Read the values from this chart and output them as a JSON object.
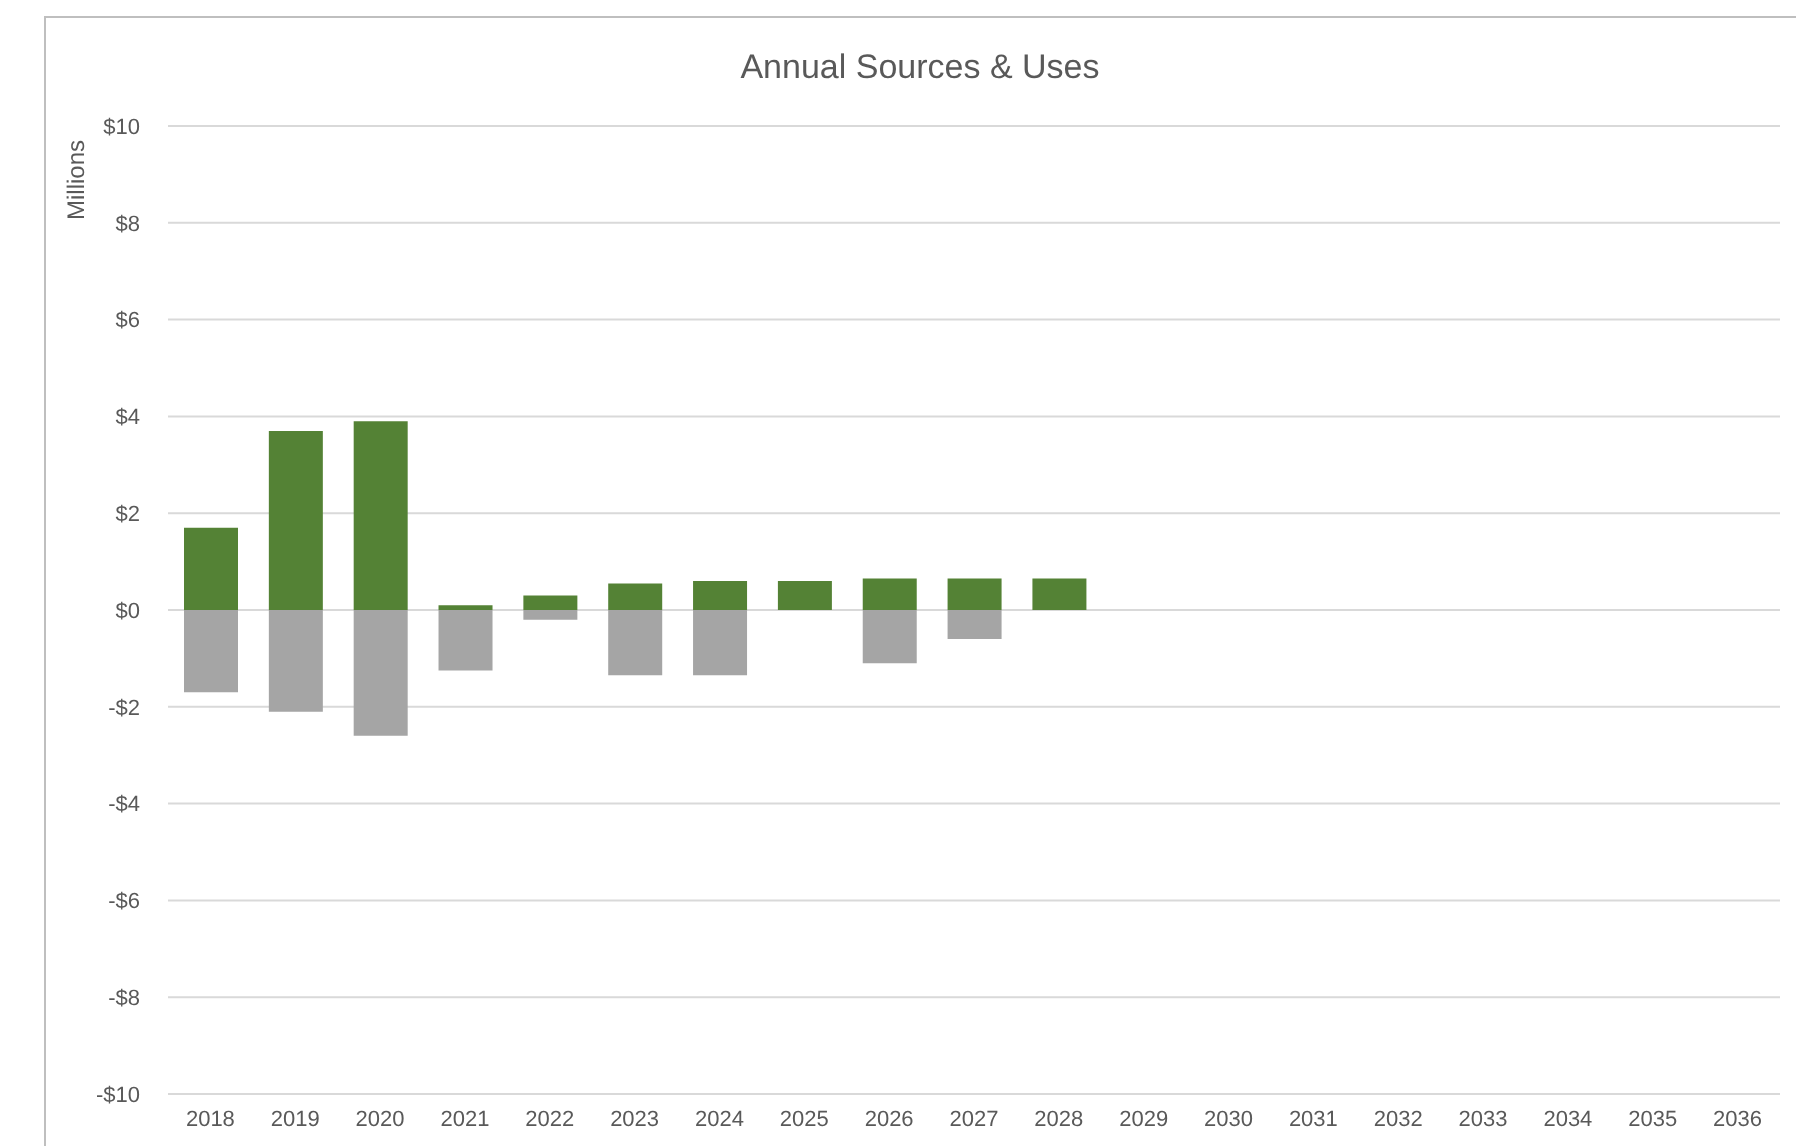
{
  "chart_data": {
    "type": "bar",
    "title": "Annual Sources & Uses",
    "ylabel": "Millions",
    "categories": [
      "2018",
      "2019",
      "2020",
      "2021",
      "2022",
      "2023",
      "2024",
      "2025",
      "2026",
      "2027",
      "2028",
      "2029",
      "2030",
      "2031",
      "2032",
      "2033",
      "2034",
      "2035",
      "2036"
    ],
    "series": [
      {
        "color": "#548235",
        "values": [
          1.7,
          3.7,
          3.9,
          0.1,
          0.3,
          0.55,
          0.6,
          0.6,
          0.65,
          0.65,
          0.65,
          null,
          null,
          null,
          null,
          null,
          null,
          null,
          null
        ]
      },
      {
        "color": "#a5a5a5",
        "values": [
          -1.7,
          -2.1,
          -2.6,
          -1.25,
          -0.2,
          -1.35,
          -1.35,
          null,
          -1.1,
          -0.6,
          null,
          null,
          null,
          null,
          null,
          null,
          null,
          null,
          null
        ]
      }
    ],
    "stacked": true,
    "ylim": [
      -10,
      10
    ],
    "yticks": [
      {
        "value": -10,
        "label": "-$10"
      },
      {
        "value": -8,
        "label": "-$8"
      },
      {
        "value": -6,
        "label": "-$6"
      },
      {
        "value": -4,
        "label": "-$4"
      },
      {
        "value": -2,
        "label": "-$2"
      },
      {
        "value": 0,
        "label": "$0"
      },
      {
        "value": 2,
        "label": "$2"
      },
      {
        "value": 4,
        "label": "$4"
      },
      {
        "value": 6,
        "label": "$6"
      },
      {
        "value": 8,
        "label": "$8"
      },
      {
        "value": 10,
        "label": "$10"
      }
    ],
    "grid": "y"
  }
}
